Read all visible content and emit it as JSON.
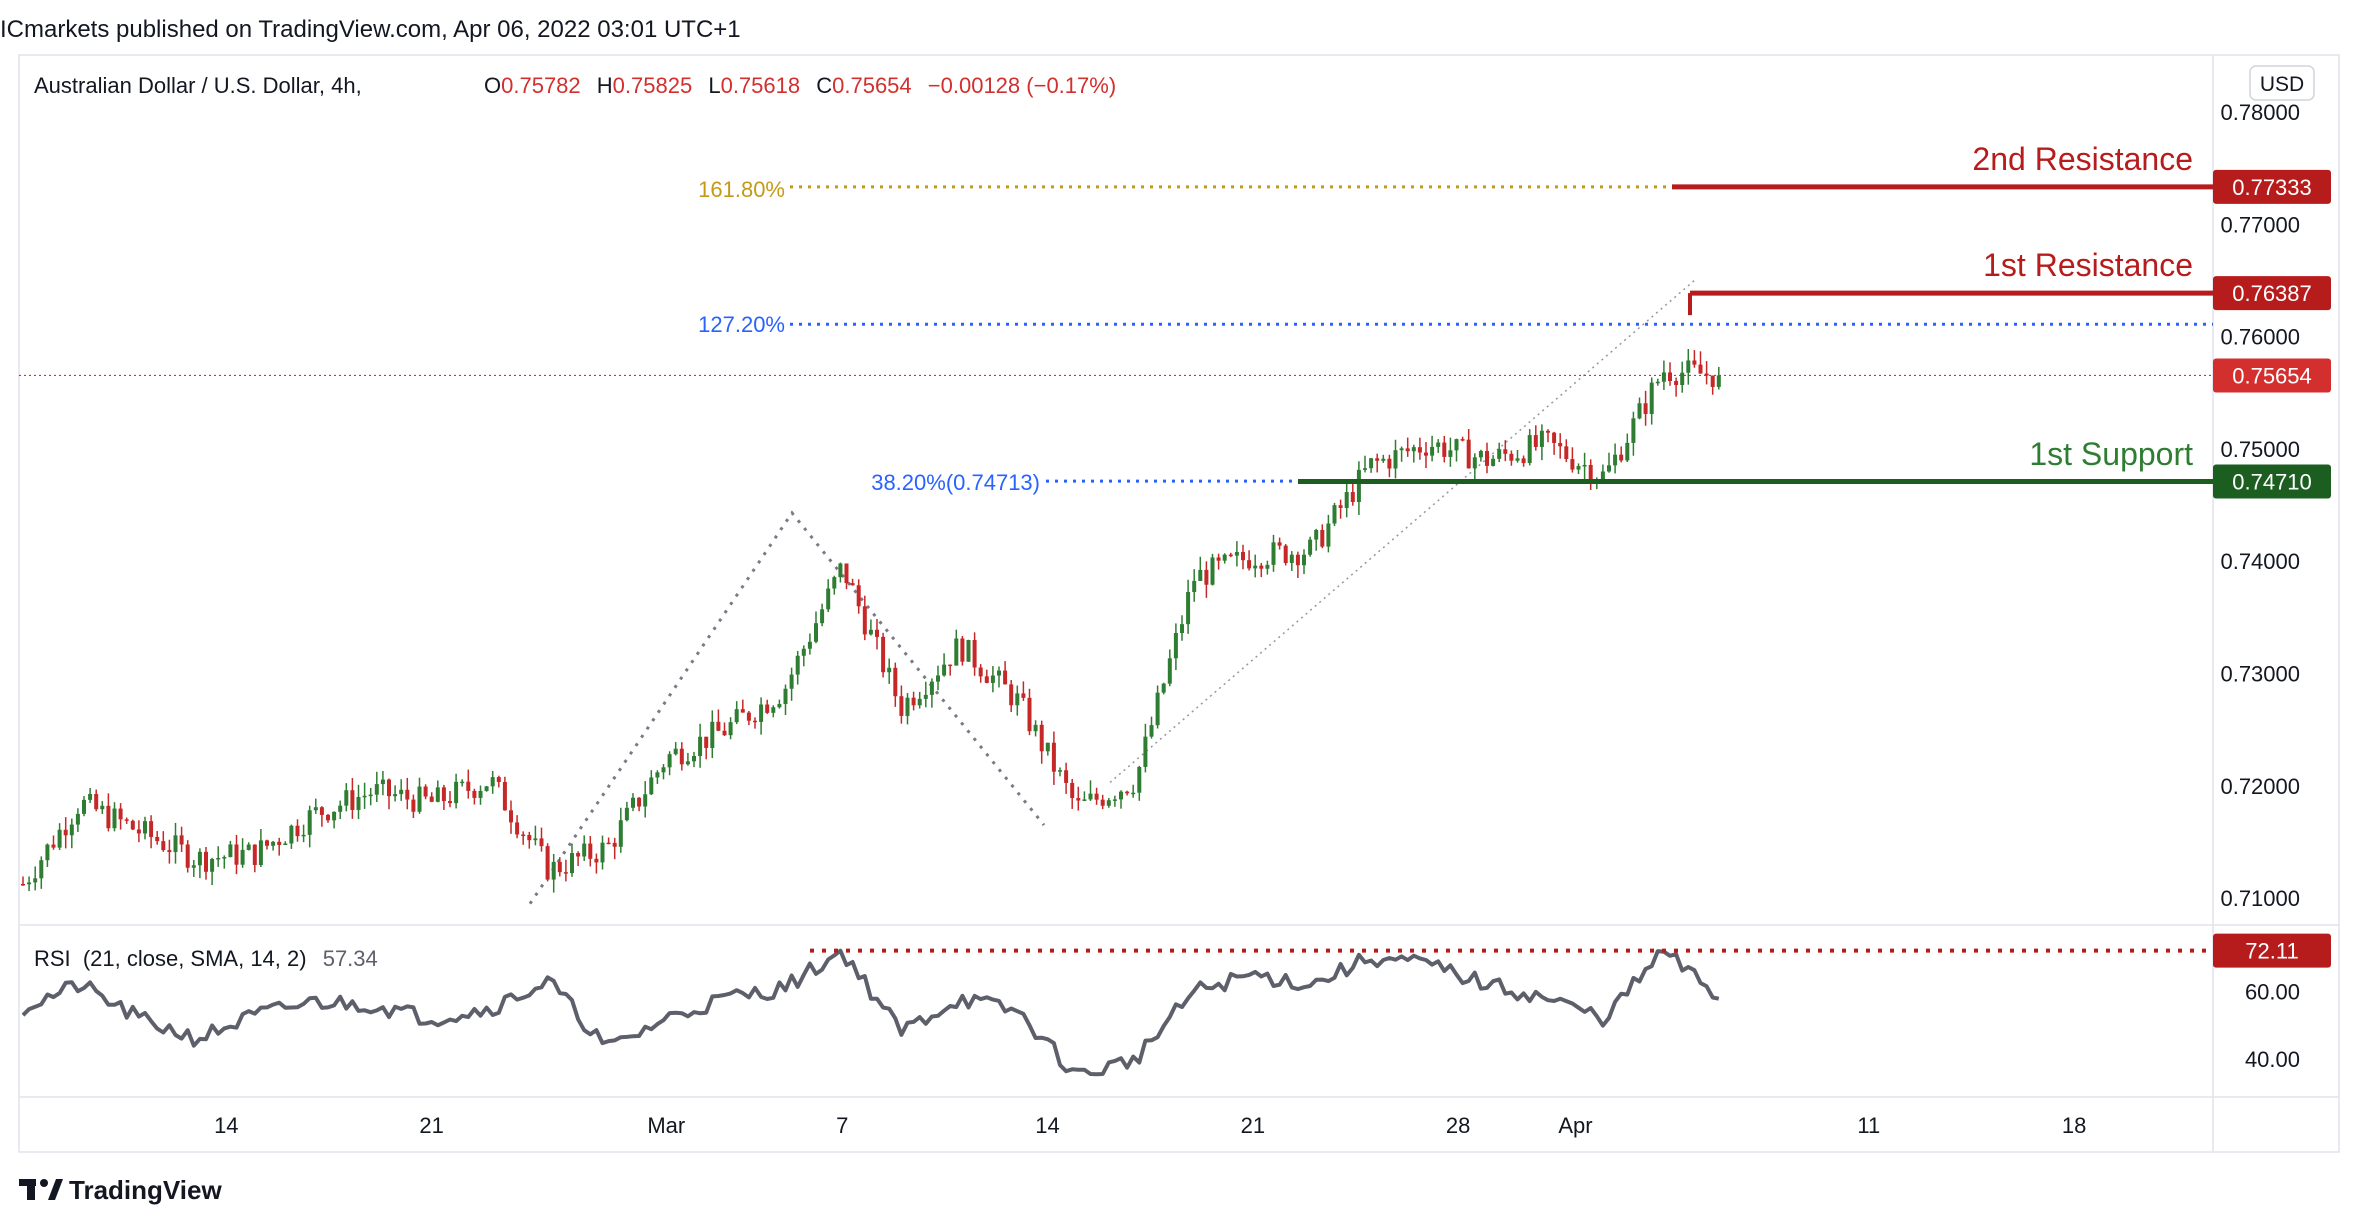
{
  "header": {
    "published": "ICmarkets published on TradingView.com, Apr 06, 2022 03:01 UTC+1"
  },
  "symbol": {
    "name": "Australian Dollar / U.S. Dollar, 4h,",
    "o_label": "O",
    "o": "0.75782",
    "h_label": "H",
    "h": "0.75825",
    "l_label": "L",
    "l": "0.75618",
    "c_label": "C",
    "c": "0.75654",
    "change": "−0.00128 (−0.17%)"
  },
  "currency": "USD",
  "footer": {
    "brand": "TradingView"
  },
  "colors": {
    "up": "#2e7d32",
    "down": "#c62828",
    "resistance": "#b71c1c",
    "support": "#1b5e20",
    "fib_161": "#c49a16",
    "fib_127": "#2962ff",
    "fib_38": "#2962ff",
    "rsi_line": "#5d606b",
    "price_line": "#d32f2f"
  },
  "chart_data": [
    {
      "type": "candlestick",
      "title": "Australian Dollar / U.S. Dollar, 4h",
      "y_range": [
        0.7085,
        0.7815
      ],
      "y_ticks": [
        "0.78000",
        "0.77000",
        "0.76000",
        "0.75000",
        "0.74000",
        "0.73000",
        "0.72000",
        "0.71000"
      ],
      "y_tick_values": [
        0.78,
        0.77,
        0.76,
        0.75,
        0.74,
        0.73,
        0.72,
        0.71
      ],
      "x_ticks": [
        "14",
        "21",
        "Mar",
        "7",
        "14",
        "21",
        "28",
        "Apr",
        "11",
        "18"
      ],
      "x_tick_dates": [
        "2022-02-14",
        "2022-02-21",
        "2022-03-01",
        "2022-03-07",
        "2022-03-14",
        "2022-03-21",
        "2022-03-28",
        "2022-04-01",
        "2022-04-11",
        "2022-04-18"
      ],
      "series": [
        {
          "name": "AUDUSD close (approx.)",
          "x": [
            "2022-02-07",
            "2022-02-09",
            "2022-02-11",
            "2022-02-13",
            "2022-02-15",
            "2022-02-17",
            "2022-02-19",
            "2022-02-21",
            "2022-02-23",
            "2022-02-25",
            "2022-02-27",
            "2022-03-01",
            "2022-03-03",
            "2022-03-05",
            "2022-03-07",
            "2022-03-09",
            "2022-03-11",
            "2022-03-13",
            "2022-03-15",
            "2022-03-17",
            "2022-03-19",
            "2022-03-21",
            "2022-03-23",
            "2022-03-25",
            "2022-03-27",
            "2022-03-29",
            "2022-03-31",
            "2022-04-02",
            "2022-04-04",
            "2022-04-06"
          ],
          "values": [
            0.711,
            0.7185,
            0.716,
            0.7135,
            0.714,
            0.7175,
            0.7195,
            0.7185,
            0.7205,
            0.7125,
            0.7145,
            0.7225,
            0.725,
            0.7285,
            0.7395,
            0.727,
            0.7325,
            0.7275,
            0.718,
            0.7205,
            0.7385,
            0.7405,
            0.741,
            0.7485,
            0.7505,
            0.749,
            0.7505,
            0.7475,
            0.757,
            0.7565
          ]
        }
      ],
      "levels": [
        {
          "name": "2nd Resistance",
          "value": 0.77333,
          "label": "0.77333"
        },
        {
          "name": "1st Resistance",
          "value": 0.76387,
          "label": "0.76387"
        },
        {
          "name": "1st Support",
          "value": 0.7471,
          "label": "0.74710"
        }
      ],
      "fibonacci": [
        {
          "label": "161.80%",
          "value": 0.77333
        },
        {
          "label": "127.20%",
          "value": 0.7611
        },
        {
          "label": "38.20%(0.74713)",
          "value": 0.74713
        }
      ],
      "current_price": {
        "value": 0.75654,
        "label": "0.75654"
      },
      "grid": false
    },
    {
      "type": "line",
      "title": "RSI (21, close, SMA, 14, 2)",
      "indicator": {
        "name": "RSI",
        "params": "(21, close, SMA, 14, 2)",
        "value": "57.34"
      },
      "y_range": [
        30,
        75
      ],
      "y_ticks": [
        "60.00",
        "40.00"
      ],
      "y_tick_values": [
        60,
        40
      ],
      "overbought_marker": {
        "value": 72.11,
        "label": "72.11"
      },
      "series": [
        {
          "name": "RSI (approx.)",
          "x": [
            "2022-02-07",
            "2022-02-09",
            "2022-02-11",
            "2022-02-13",
            "2022-02-15",
            "2022-02-17",
            "2022-02-19",
            "2022-02-21",
            "2022-02-23",
            "2022-02-25",
            "2022-02-27",
            "2022-03-01",
            "2022-03-03",
            "2022-03-05",
            "2022-03-07",
            "2022-03-09",
            "2022-03-11",
            "2022-03-13",
            "2022-03-15",
            "2022-03-17",
            "2022-03-19",
            "2022-03-21",
            "2022-03-23",
            "2022-03-25",
            "2022-03-27",
            "2022-03-29",
            "2022-03-31",
            "2022-04-02",
            "2022-04-04",
            "2022-04-06"
          ],
          "values": [
            55,
            62,
            52,
            46,
            53,
            57,
            56,
            52,
            55,
            63,
            43,
            52,
            58,
            61,
            72,
            48,
            58,
            54,
            35,
            40,
            60,
            65,
            62,
            70,
            68,
            62,
            58,
            52,
            72,
            57.34
          ]
        }
      ],
      "grid": false
    }
  ],
  "annotations": {
    "r2_text": "2nd Resistance",
    "r1_text": "1st Resistance",
    "s1_text": "1st Support",
    "fib161_text": "161.80%",
    "fib127_text": "127.20%",
    "fib38_text": "38.20%(0.74713)"
  }
}
